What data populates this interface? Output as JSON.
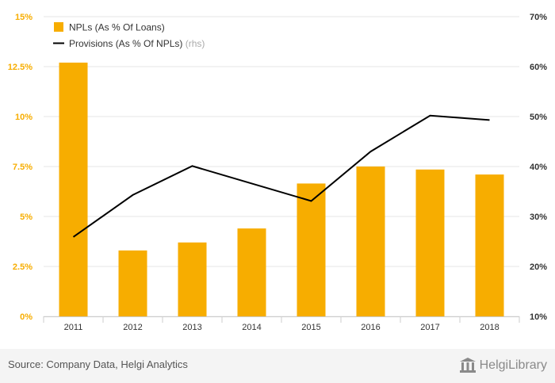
{
  "chart_data": {
    "type": "bar+line",
    "categories": [
      "2011",
      "2012",
      "2013",
      "2014",
      "2015",
      "2016",
      "2017",
      "2018"
    ],
    "series": [
      {
        "name": "NPLs (As % Of Loans)",
        "type": "bar",
        "axis": "left",
        "color": "#f7ad00",
        "values": [
          12.7,
          3.3,
          3.7,
          4.4,
          6.65,
          7.5,
          7.35,
          7.1
        ]
      },
      {
        "name": "Provisions (As % Of NPLs)",
        "rhs_label": "(rhs)",
        "type": "line",
        "axis": "right",
        "color": "#000000",
        "values": [
          25.9,
          34.3,
          40.1,
          36.6,
          33.1,
          43.0,
          50.2,
          49.3
        ]
      }
    ],
    "y_left": {
      "ylim": [
        0,
        15
      ],
      "ticks": [
        "0%",
        "2.5%",
        "5%",
        "7.5%",
        "10%",
        "12.5%",
        "15%"
      ],
      "color": "#f7ad00"
    },
    "y_right": {
      "ylim": [
        10,
        70
      ],
      "ticks": [
        "10%",
        "20%",
        "30%",
        "40%",
        "50%",
        "60%",
        "70%"
      ]
    },
    "grid": true,
    "legend": "top-left"
  },
  "footer": {
    "source": "Source: Company Data, Helgi Analytics",
    "brand": "HelgiLibrary"
  }
}
